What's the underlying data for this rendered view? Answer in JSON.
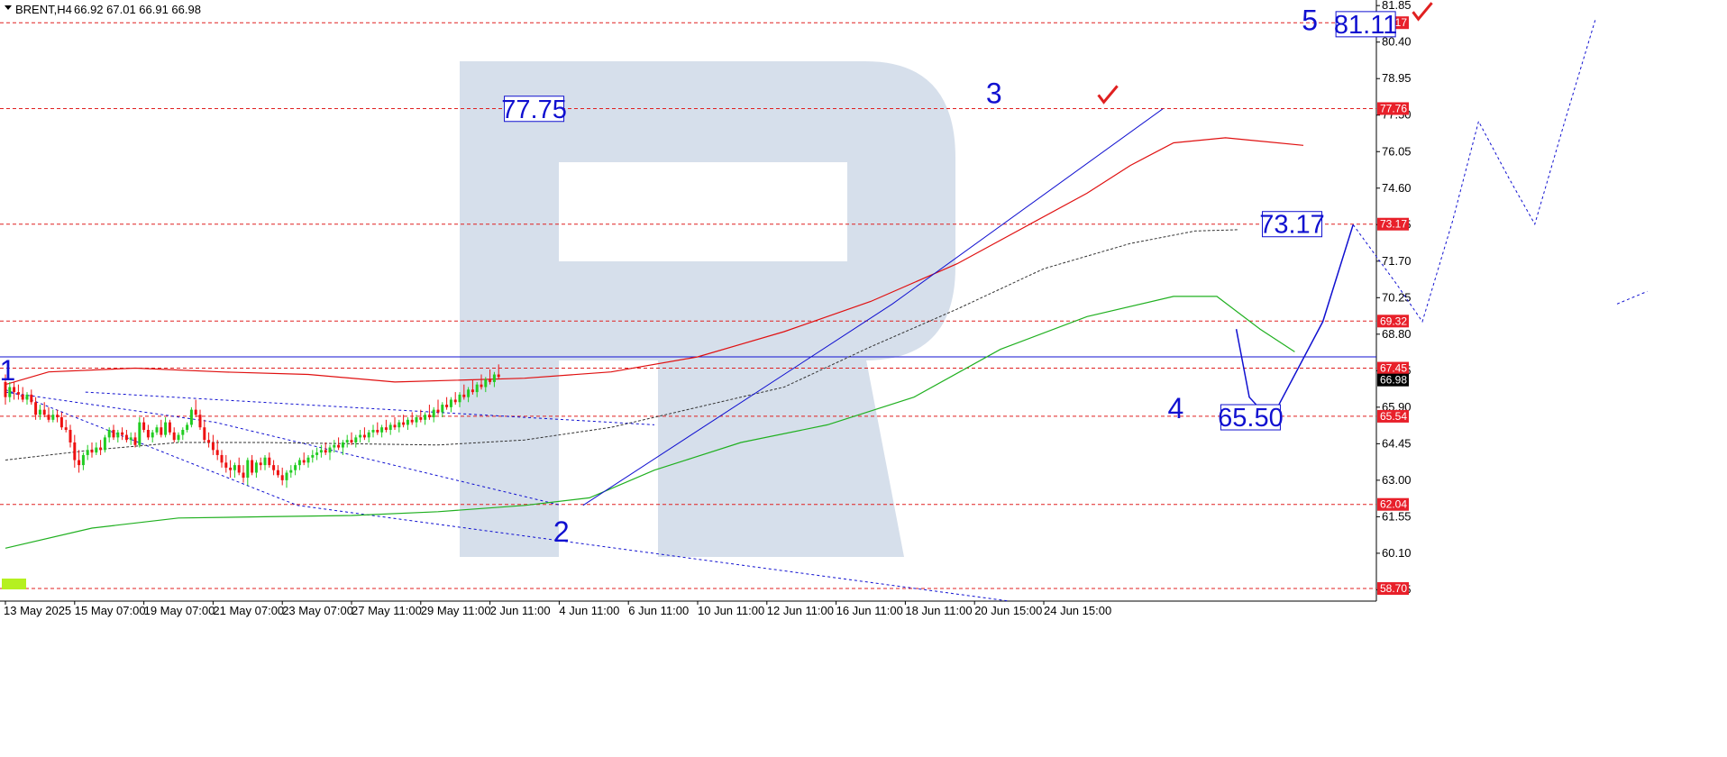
{
  "header": {
    "symbol": "BRENT,H4",
    "ohlc": "66.92 67.01 66.91 66.98"
  },
  "colors": {
    "background": "#ffffff",
    "level_line": "#e02020",
    "wave_line": "#1010d0",
    "bull_candle": "#22cc22",
    "bear_candle": "#ee1111",
    "ma_red": "#e01010",
    "ma_green": "#20b020",
    "watermark": "#d6dfeb",
    "axis_badge_red": "#e8202a",
    "axis_badge_black": "#000000"
  },
  "chart_data": {
    "type": "candlestick",
    "ylim": [
      58.2,
      82.0
    ],
    "y_ticks": [
      "81.85",
      "80.40",
      "78.95",
      "77.50",
      "76.05",
      "74.60",
      "73.15",
      "71.70",
      "70.25",
      "68.80",
      "67.35",
      "65.90",
      "64.45",
      "63.00",
      "61.55",
      "60.10",
      "58.65"
    ],
    "x_ticks": [
      "13 May 2025",
      "15 May 07:00",
      "19 May 07:00",
      "21 May 07:00",
      "23 May 07:00",
      "27 May 11:00",
      "29 May 11:00",
      "2 Jun 11:00",
      "4 Jun 11:00",
      "6 Jun 11:00",
      "10 Jun 11:00",
      "12 Jun 11:00",
      "16 Jun 11:00",
      "18 Jun 11:00",
      "20 Jun 15:00",
      "24 Jun 15:00"
    ],
    "level_lines": [
      {
        "value": 81.17,
        "label": "81.17"
      },
      {
        "value": 77.76,
        "label": "77.76"
      },
      {
        "value": 73.17,
        "label": "73.17"
      },
      {
        "value": 69.32,
        "label": "69.32"
      },
      {
        "value": 67.45,
        "label": "67.45"
      },
      {
        "value": 65.54,
        "label": "65.54"
      },
      {
        "value": 62.04,
        "label": "62.04"
      },
      {
        "value": 58.7,
        "label": "58.70"
      }
    ],
    "current_price": {
      "value": 66.98,
      "label": "66.98"
    },
    "horizontal_line": 67.9,
    "wave_labels": [
      {
        "text": "1",
        "x": 0.5,
        "y": 67.4
      },
      {
        "text": "2",
        "x": 128.5,
        "y": 61.0
      },
      {
        "text": "3",
        "x": 228.5,
        "y": 78.4
      },
      {
        "text": "4",
        "x": 270.5,
        "y": 65.9
      },
      {
        "text": "5",
        "x": 301.5,
        "y": 81.3
      }
    ],
    "price_boxes": [
      {
        "text": "77.75",
        "x": 122.2,
        "y": 77.75
      },
      {
        "text": "73.17",
        "x": 297.4,
        "y": 73.17
      },
      {
        "text": "65.50",
        "x": 287.8,
        "y": 65.5
      },
      {
        "text": "81.11",
        "x": 314.4,
        "y": 81.11
      }
    ],
    "checkmarks": [
      {
        "x": 254.5,
        "y": 78.3
      },
      {
        "x": 327.2,
        "y": 81.6
      }
    ],
    "forecast_solid": [
      [
        292.5,
        65.4
      ],
      [
        304.5,
        69.3
      ],
      [
        311.5,
        73.15
      ]
    ],
    "forecast_dotted": [
      [
        311.5,
        73.15
      ],
      [
        321.5,
        70.8
      ],
      [
        327.5,
        69.3
      ],
      [
        334.5,
        73.3
      ],
      [
        340.5,
        77.25
      ],
      [
        347.5,
        75.0
      ],
      [
        353.5,
        73.17
      ],
      [
        360.5,
        77.3
      ],
      [
        367.5,
        81.3
      ]
    ],
    "forecast_dotted_tail": [
      [
        372.5,
        70.0
      ],
      [
        379.5,
        70.5
      ]
    ],
    "wave_line": [
      [
        133.5,
        62.0
      ],
      [
        205.0,
        70.0
      ],
      [
        267.5,
        77.75
      ]
    ],
    "correction_line": [
      [
        284.5,
        69.0
      ],
      [
        287.5,
        66.3
      ],
      [
        291.5,
        65.55
      ]
    ],
    "ma_red": [
      [
        0,
        66.8
      ],
      [
        10,
        67.3
      ],
      [
        30,
        67.45
      ],
      [
        50,
        67.3
      ],
      [
        70,
        67.2
      ],
      [
        90,
        66.9
      ],
      [
        120,
        67.05
      ],
      [
        140,
        67.3
      ],
      [
        160,
        67.9
      ],
      [
        180,
        68.9
      ],
      [
        200,
        70.1
      ],
      [
        220,
        71.6
      ],
      [
        235,
        73.0
      ],
      [
        250,
        74.4
      ],
      [
        260,
        75.5
      ],
      [
        270,
        76.4
      ],
      [
        282,
        76.6
      ],
      [
        300,
        76.3
      ]
    ],
    "ma_green": [
      [
        0,
        60.3
      ],
      [
        20,
        61.1
      ],
      [
        40,
        61.5
      ],
      [
        60,
        61.55
      ],
      [
        80,
        61.6
      ],
      [
        100,
        61.75
      ],
      [
        120,
        62.0
      ],
      [
        135,
        62.3
      ],
      [
        150,
        63.4
      ],
      [
        170,
        64.5
      ],
      [
        190,
        65.2
      ],
      [
        210,
        66.3
      ],
      [
        230,
        68.2
      ],
      [
        250,
        69.5
      ],
      [
        270,
        70.3
      ],
      [
        280,
        70.3
      ],
      [
        290,
        69.0
      ],
      [
        298,
        68.1
      ]
    ],
    "ma_dotted": [
      [
        0,
        63.8
      ],
      [
        20,
        64.2
      ],
      [
        40,
        64.5
      ],
      [
        60,
        64.5
      ],
      [
        80,
        64.45
      ],
      [
        100,
        64.4
      ],
      [
        120,
        64.6
      ],
      [
        140,
        65.1
      ],
      [
        160,
        65.9
      ],
      [
        180,
        66.7
      ],
      [
        200,
        68.3
      ],
      [
        220,
        69.8
      ],
      [
        240,
        71.4
      ],
      [
        260,
        72.4
      ],
      [
        275,
        72.9
      ],
      [
        285,
        72.95
      ]
    ],
    "channel_lines": [
      [
        [
          0,
          66.6
        ],
        [
          67.5,
          62.0
        ],
        [
          232.0,
          58.2
        ]
      ],
      [
        [
          18.5,
          66.5
        ],
        [
          150.0,
          65.2
        ]
      ],
      [
        [
          0,
          66.5
        ],
        [
          48.5,
          65.3
        ],
        [
          128.5,
          62.0
        ]
      ]
    ],
    "candles": [
      [
        66.9,
        67.2,
        66.0,
        66.3
      ],
      [
        66.3,
        66.9,
        66.1,
        66.7
      ],
      [
        66.7,
        66.9,
        66.2,
        66.5
      ],
      [
        66.5,
        66.8,
        66.2,
        66.4
      ],
      [
        66.4,
        66.7,
        66.1,
        66.2
      ],
      [
        66.2,
        66.5,
        66.0,
        66.4
      ],
      [
        66.4,
        66.6,
        66.0,
        66.1
      ],
      [
        66.1,
        66.3,
        65.4,
        65.6
      ],
      [
        65.6,
        66.0,
        65.4,
        65.8
      ],
      [
        65.8,
        66.1,
        65.5,
        65.6
      ],
      [
        65.6,
        65.9,
        65.3,
        65.4
      ],
      [
        65.4,
        65.8,
        65.3,
        65.6
      ],
      [
        65.6,
        65.8,
        65.3,
        65.5
      ],
      [
        65.5,
        65.7,
        65.0,
        65.1
      ],
      [
        65.1,
        65.4,
        64.9,
        65.0
      ],
      [
        65.0,
        65.2,
        64.3,
        64.5
      ],
      [
        64.5,
        64.8,
        63.5,
        63.8
      ],
      [
        63.8,
        64.2,
        63.3,
        63.6
      ],
      [
        63.6,
        64.1,
        63.4,
        64.0
      ],
      [
        64.0,
        64.4,
        63.8,
        64.2
      ],
      [
        64.2,
        64.5,
        63.9,
        64.1
      ],
      [
        64.1,
        64.5,
        64.0,
        64.3
      ],
      [
        64.3,
        64.6,
        64.0,
        64.2
      ],
      [
        64.2,
        64.8,
        64.1,
        64.7
      ],
      [
        64.7,
        65.1,
        64.5,
        65.0
      ],
      [
        65.0,
        65.2,
        64.6,
        64.7
      ],
      [
        64.7,
        65.0,
        64.5,
        64.9
      ],
      [
        64.9,
        65.1,
        64.6,
        64.8
      ],
      [
        64.8,
        65.0,
        64.5,
        64.6
      ],
      [
        64.6,
        64.9,
        64.4,
        64.7
      ],
      [
        64.7,
        64.9,
        64.3,
        64.4
      ],
      [
        64.4,
        65.5,
        64.3,
        65.3
      ],
      [
        65.3,
        65.5,
        64.9,
        65.0
      ],
      [
        65.0,
        65.2,
        64.6,
        64.7
      ],
      [
        64.7,
        65.0,
        64.5,
        64.9
      ],
      [
        64.9,
        65.2,
        64.8,
        65.1
      ],
      [
        65.1,
        65.4,
        64.7,
        64.8
      ],
      [
        64.8,
        65.5,
        64.7,
        65.3
      ],
      [
        65.3,
        65.4,
        64.8,
        64.9
      ],
      [
        64.9,
        65.1,
        64.5,
        64.6
      ],
      [
        64.6,
        64.9,
        64.5,
        64.8
      ],
      [
        64.8,
        65.1,
        64.6,
        65.0
      ],
      [
        65.0,
        65.3,
        64.9,
        65.2
      ],
      [
        65.2,
        65.9,
        65.1,
        65.8
      ],
      [
        65.8,
        66.2,
        65.5,
        65.6
      ],
      [
        65.6,
        65.8,
        65.0,
        65.1
      ],
      [
        65.1,
        65.4,
        64.5,
        64.6
      ],
      [
        64.6,
        64.9,
        64.3,
        64.5
      ],
      [
        64.5,
        64.8,
        64.0,
        64.2
      ],
      [
        64.2,
        64.6,
        63.8,
        64.0
      ],
      [
        64.0,
        64.2,
        63.5,
        63.7
      ],
      [
        63.7,
        64.0,
        63.3,
        63.5
      ],
      [
        63.5,
        63.8,
        63.1,
        63.4
      ],
      [
        63.4,
        63.7,
        63.1,
        63.6
      ],
      [
        63.6,
        63.9,
        63.2,
        63.3
      ],
      [
        63.3,
        63.6,
        62.9,
        63.1
      ],
      [
        63.1,
        63.9,
        62.8,
        63.8
      ],
      [
        63.8,
        64.0,
        63.2,
        63.3
      ],
      [
        63.3,
        63.8,
        63.1,
        63.7
      ],
      [
        63.7,
        63.9,
        63.4,
        63.6
      ],
      [
        63.6,
        64.0,
        63.4,
        63.9
      ],
      [
        63.9,
        64.1,
        63.5,
        63.6
      ],
      [
        63.6,
        63.8,
        63.2,
        63.4
      ],
      [
        63.4,
        63.6,
        63.1,
        63.2
      ],
      [
        63.2,
        63.5,
        62.8,
        63.0
      ],
      [
        63.0,
        63.4,
        62.7,
        63.3
      ],
      [
        63.3,
        63.6,
        63.1,
        63.4
      ],
      [
        63.4,
        63.7,
        63.2,
        63.6
      ],
      [
        63.6,
        63.9,
        63.4,
        63.8
      ],
      [
        63.8,
        64.1,
        63.6,
        63.7
      ],
      [
        63.7,
        64.0,
        63.5,
        63.9
      ],
      [
        63.9,
        64.2,
        63.7,
        64.0
      ],
      [
        64.0,
        64.3,
        63.8,
        64.1
      ],
      [
        64.1,
        64.4,
        63.9,
        64.2
      ],
      [
        64.2,
        64.5,
        64.0,
        64.1
      ],
      [
        64.1,
        64.4,
        63.8,
        64.3
      ],
      [
        64.3,
        64.6,
        64.1,
        64.4
      ],
      [
        64.4,
        64.7,
        64.2,
        64.3
      ],
      [
        64.3,
        64.6,
        64.0,
        64.5
      ],
      [
        64.5,
        64.8,
        64.3,
        64.6
      ],
      [
        64.6,
        64.9,
        64.4,
        64.5
      ],
      [
        64.5,
        64.8,
        64.3,
        64.7
      ],
      [
        64.7,
        65.0,
        64.5,
        64.8
      ],
      [
        64.8,
        65.1,
        64.6,
        64.7
      ],
      [
        64.7,
        65.0,
        64.5,
        64.9
      ],
      [
        64.9,
        65.2,
        64.7,
        65.0
      ],
      [
        65.0,
        65.3,
        64.8,
        64.9
      ],
      [
        64.9,
        65.2,
        64.7,
        65.1
      ],
      [
        65.1,
        65.4,
        64.9,
        65.0
      ],
      [
        65.0,
        65.3,
        64.8,
        65.2
      ],
      [
        65.2,
        65.5,
        65.0,
        65.1
      ],
      [
        65.1,
        65.4,
        64.9,
        65.3
      ],
      [
        65.3,
        65.6,
        65.1,
        65.2
      ],
      [
        65.2,
        65.5,
        65.0,
        65.4
      ],
      [
        65.4,
        65.7,
        65.2,
        65.3
      ],
      [
        65.3,
        65.6,
        65.1,
        65.5
      ],
      [
        65.5,
        65.8,
        65.3,
        65.4
      ],
      [
        65.4,
        65.7,
        65.2,
        65.6
      ],
      [
        65.6,
        66.0,
        65.4,
        65.5
      ],
      [
        65.5,
        65.9,
        65.3,
        65.8
      ],
      [
        65.8,
        66.2,
        65.6,
        65.7
      ],
      [
        65.7,
        66.1,
        65.5,
        66.0
      ],
      [
        66.0,
        66.3,
        65.8,
        65.9
      ],
      [
        65.9,
        66.3,
        65.7,
        66.2
      ],
      [
        66.2,
        66.5,
        66.0,
        66.1
      ],
      [
        66.1,
        66.5,
        65.9,
        66.4
      ],
      [
        66.4,
        66.8,
        66.2,
        66.3
      ],
      [
        66.3,
        66.7,
        66.1,
        66.6
      ],
      [
        66.6,
        67.0,
        66.4,
        66.5
      ],
      [
        66.5,
        66.9,
        66.3,
        66.8
      ],
      [
        66.8,
        67.2,
        66.6,
        66.7
      ],
      [
        66.7,
        67.1,
        66.5,
        67.0
      ],
      [
        67.0,
        67.4,
        66.8,
        66.9
      ],
      [
        66.9,
        67.3,
        66.7,
        67.2
      ],
      [
        67.2,
        67.6,
        67.0,
        67.1
      ]
    ]
  }
}
